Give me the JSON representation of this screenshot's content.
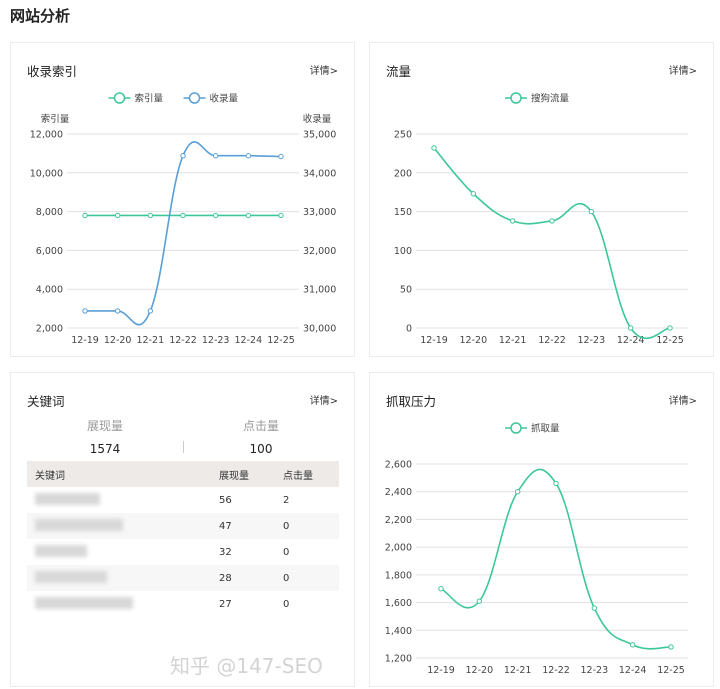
{
  "page_title": "网站分析",
  "details_label": "详情>",
  "watermark": "知乎 @147-SEO",
  "colors": {
    "green": "#3cc79a",
    "blue": "#5a9fd6"
  },
  "index_card": {
    "title": "收录索引"
  },
  "traffic_card": {
    "title": "流量"
  },
  "keyword_card": {
    "title": "关键词",
    "impressions_label": "展现量",
    "impressions_value": "1574",
    "clicks_label": "点击量",
    "clicks_value": "100",
    "columns": [
      "关键词",
      "展现量",
      "点击量"
    ],
    "rows": [
      {
        "impressions": "56",
        "clicks": "2"
      },
      {
        "impressions": "47",
        "clicks": "0"
      },
      {
        "impressions": "32",
        "clicks": "0"
      },
      {
        "impressions": "28",
        "clicks": "0"
      },
      {
        "impressions": "27",
        "clicks": "0"
      }
    ]
  },
  "crawl_card": {
    "title": "抓取压力"
  },
  "chart_data": [
    {
      "type": "line",
      "title": "收录索引",
      "categories": [
        "12-19",
        "12-20",
        "12-21",
        "12-22",
        "12-23",
        "12-24",
        "12-25"
      ],
      "ylabel": "索引量",
      "ylabel_right": "收录量",
      "ylim": [
        2000,
        12000
      ],
      "ylim_right": [
        30000,
        35000
      ],
      "yticks": [
        "12,000",
        "10,000",
        "8,000",
        "6,000",
        "4,000",
        "2,000"
      ],
      "yticks_right": [
        "35,000",
        "34,000",
        "33,000",
        "32,000",
        "31,000",
        "30,000"
      ],
      "legend": "top",
      "grid": true,
      "series": [
        {
          "name": "索引量",
          "axis": "left",
          "color": "#3cc79a",
          "values": [
            7800,
            7800,
            7800,
            7800,
            7800,
            7800,
            7800
          ]
        },
        {
          "name": "收录量",
          "axis": "right",
          "color": "#5a9fd6",
          "values": [
            30440,
            30440,
            30440,
            34440,
            34440,
            34440,
            34420
          ]
        }
      ]
    },
    {
      "type": "line",
      "title": "流量",
      "categories": [
        "12-19",
        "12-20",
        "12-21",
        "12-22",
        "12-23",
        "12-24",
        "12-25"
      ],
      "ylim": [
        0,
        250
      ],
      "yticks": [
        "250",
        "200",
        "150",
        "100",
        "50",
        "0"
      ],
      "legend": "top",
      "grid": true,
      "series": [
        {
          "name": "搜狗流量",
          "color": "#3cc79a",
          "values": [
            232,
            173,
            138,
            138,
            150,
            0,
            0
          ]
        }
      ]
    },
    {
      "type": "line",
      "title": "抓取压力",
      "categories": [
        "12-19",
        "12-20",
        "12-21",
        "12-22",
        "12-23",
        "12-24",
        "12-25"
      ],
      "ylim": [
        1200,
        2600
      ],
      "yticks": [
        "2,600",
        "2,400",
        "2,200",
        "2,000",
        "1,800",
        "1,600",
        "1,400",
        "1,200"
      ],
      "legend": "top",
      "grid": true,
      "series": [
        {
          "name": "抓取量",
          "color": "#3cc79a",
          "values": [
            1700,
            1610,
            2400,
            2460,
            1560,
            1295,
            1280
          ]
        }
      ]
    }
  ]
}
